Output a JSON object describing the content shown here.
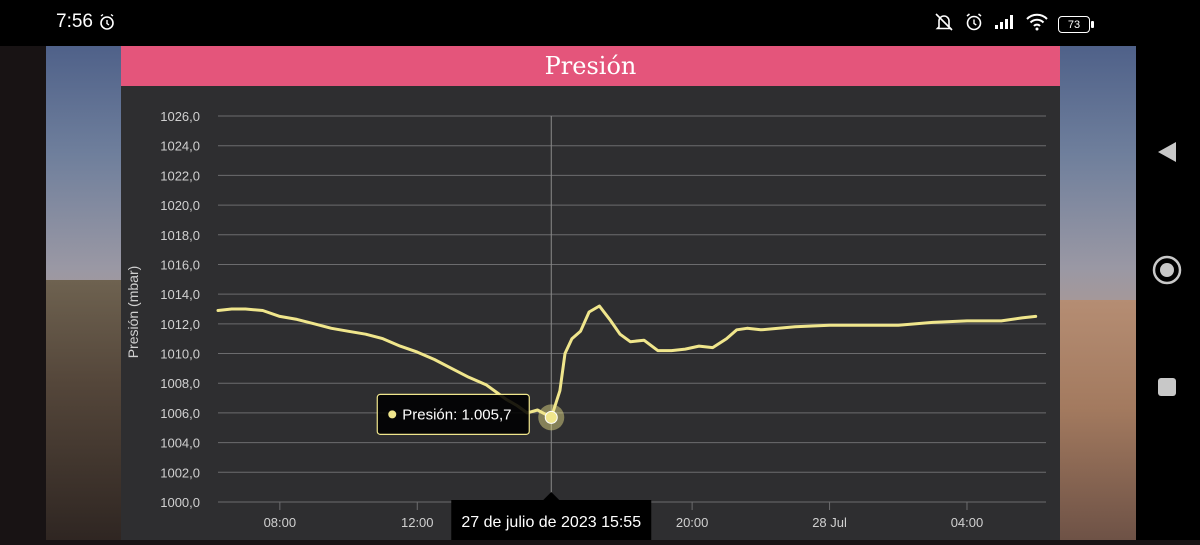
{
  "status_bar": {
    "time": "7:56",
    "battery": "73",
    "icons": [
      "alarm-icon",
      "mute-icon",
      "alarm-icon",
      "signal-icon",
      "wifi-icon",
      "battery-icon"
    ]
  },
  "title": "Presión",
  "chart_data": {
    "type": "line",
    "ylabel": "Presión (mbar)",
    "ylim": [
      1000.0,
      1026.0
    ],
    "y_ticks": [
      "1000,0",
      "1002,0",
      "1004,0",
      "1006,0",
      "1008,0",
      "1010,0",
      "1012,0",
      "1014,0",
      "1016,0",
      "1018,0",
      "1020,0",
      "1022,0",
      "1024,0",
      "1026,0"
    ],
    "x_ticks": [
      "08:00",
      "12:00",
      "20:00",
      "28 Jul",
      "04:00"
    ],
    "x_tick_hours": [
      8,
      12,
      20,
      24,
      28
    ],
    "xlim_hours": [
      6.2,
      30.3
    ],
    "line_color": "#f0e68c",
    "series": [
      {
        "x": [
          6.2,
          6.6,
          7.0,
          7.5,
          8.0,
          8.5,
          9.0,
          9.5,
          10.0,
          10.5,
          11.0,
          11.5,
          12.0,
          12.5,
          13.0,
          13.5,
          14.0,
          14.3,
          14.6,
          14.9,
          15.2,
          15.5,
          15.9,
          16.15,
          16.3,
          16.5,
          16.75,
          17.0,
          17.3,
          17.6,
          17.9,
          18.2,
          18.6,
          19.0,
          19.4,
          19.8,
          20.2,
          20.6,
          21.0,
          21.3,
          21.6,
          22.0,
          23.0,
          24.0,
          25.0,
          26.0,
          27.0,
          28.0,
          29.0,
          29.6,
          30.0
        ],
        "values": [
          1012.9,
          1013.0,
          1013.0,
          1012.9,
          1012.5,
          1012.3,
          1012.0,
          1011.7,
          1011.5,
          1011.3,
          1011.0,
          1010.5,
          1010.1,
          1009.6,
          1009.0,
          1008.4,
          1007.9,
          1007.4,
          1006.9,
          1006.5,
          1006.0,
          1006.2,
          1005.7,
          1007.5,
          1010.0,
          1011.0,
          1011.5,
          1012.8,
          1013.2,
          1012.3,
          1011.3,
          1010.8,
          1010.9,
          1010.2,
          1010.2,
          1010.3,
          1010.5,
          1010.4,
          1011.0,
          1011.6,
          1011.7,
          1011.6,
          1011.8,
          1011.9,
          1011.9,
          1011.9,
          1012.1,
          1012.2,
          1012.2,
          1012.4,
          1012.5
        ],
        "name": "Presión"
      }
    ],
    "tooltip": {
      "label": "Presión: 1.005,7",
      "x": 15.9,
      "value": 1005.7
    },
    "crosshair_label": "27 de julio de 2023 15:55",
    "grid": true
  }
}
